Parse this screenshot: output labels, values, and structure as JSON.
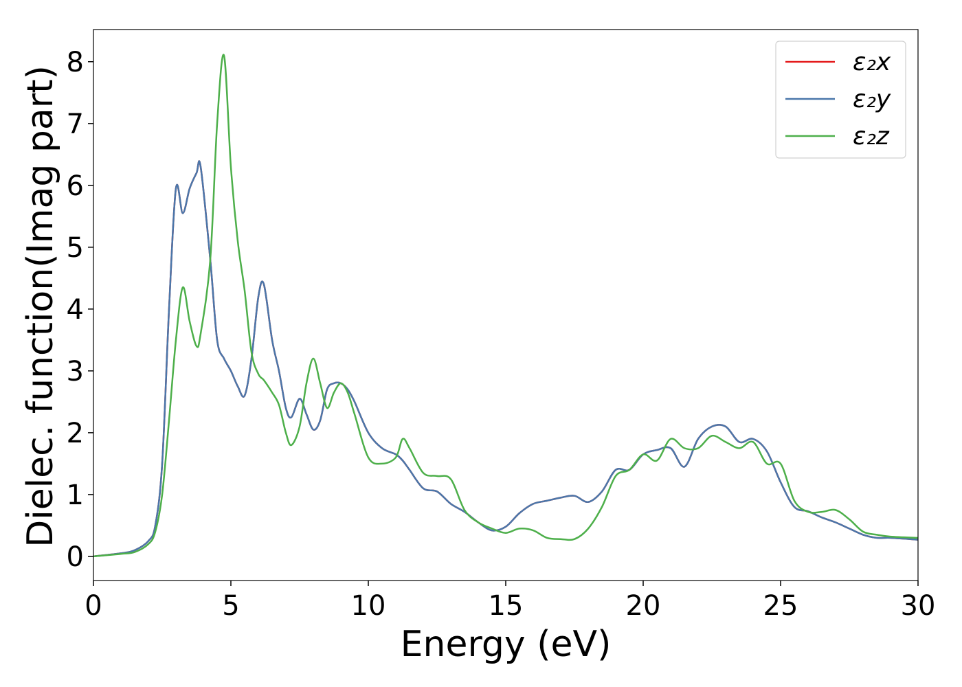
{
  "chart_data": {
    "type": "line",
    "xlabel": "Energy (eV)",
    "ylabel": "Dielec. function(Imag part)",
    "x": [
      0,
      1,
      1.5,
      2,
      2.25,
      2.5,
      2.75,
      3,
      3.25,
      3.5,
      3.75,
      3.9,
      4.25,
      4.5,
      4.75,
      5,
      5.25,
      5.5,
      5.75,
      6,
      6.2,
      6.5,
      6.75,
      7,
      7.2,
      7.5,
      7.75,
      8,
      8.25,
      8.5,
      8.75,
      9,
      9.25,
      9.5,
      10,
      10.5,
      11,
      11.25,
      11.5,
      12,
      12.5,
      13,
      13.5,
      14,
      14.5,
      15,
      15.5,
      16,
      16.5,
      17,
      17.5,
      18,
      18.5,
      19,
      19.5,
      20,
      20.5,
      21,
      21.5,
      22,
      22.5,
      23,
      23.5,
      24,
      24.5,
      25,
      25.5,
      26,
      26.5,
      27,
      27.5,
      28,
      28.5,
      29,
      30
    ],
    "series": [
      {
        "name": "ε₂x",
        "color": "#e41a1c",
        "values": [
          0,
          0.05,
          0.1,
          0.25,
          0.5,
          1.5,
          4.0,
          5.95,
          5.55,
          5.95,
          6.2,
          6.3,
          4.8,
          3.5,
          3.2,
          3.0,
          2.75,
          2.6,
          3.2,
          4.2,
          4.4,
          3.5,
          3.0,
          2.4,
          2.25,
          2.55,
          2.3,
          2.05,
          2.2,
          2.7,
          2.8,
          2.8,
          2.7,
          2.5,
          2.0,
          1.75,
          1.65,
          1.55,
          1.4,
          1.1,
          1.05,
          0.85,
          0.72,
          0.55,
          0.42,
          0.48,
          0.7,
          0.85,
          0.9,
          0.95,
          0.98,
          0.88,
          1.05,
          1.4,
          1.4,
          1.65,
          1.72,
          1.75,
          1.45,
          1.9,
          2.1,
          2.1,
          1.85,
          1.9,
          1.7,
          1.2,
          0.8,
          0.73,
          0.63,
          0.55,
          0.45,
          0.35,
          0.3,
          0.3,
          0.27
        ]
      },
      {
        "name": "ε₂y",
        "color": "#4a77aa",
        "values": [
          0,
          0.05,
          0.1,
          0.25,
          0.5,
          1.5,
          4.0,
          5.95,
          5.55,
          5.95,
          6.2,
          6.3,
          4.8,
          3.5,
          3.2,
          3.0,
          2.75,
          2.6,
          3.2,
          4.2,
          4.4,
          3.5,
          3.0,
          2.4,
          2.25,
          2.55,
          2.3,
          2.05,
          2.2,
          2.7,
          2.8,
          2.8,
          2.7,
          2.5,
          2.0,
          1.75,
          1.65,
          1.55,
          1.4,
          1.1,
          1.05,
          0.85,
          0.72,
          0.55,
          0.42,
          0.48,
          0.7,
          0.85,
          0.9,
          0.95,
          0.98,
          0.88,
          1.05,
          1.4,
          1.4,
          1.65,
          1.72,
          1.75,
          1.45,
          1.9,
          2.1,
          2.1,
          1.85,
          1.9,
          1.7,
          1.2,
          0.8,
          0.73,
          0.63,
          0.55,
          0.45,
          0.35,
          0.3,
          0.3,
          0.27
        ]
      },
      {
        "name": "ε₂z",
        "color": "#4daf4a",
        "values": [
          0,
          0.04,
          0.07,
          0.2,
          0.4,
          1.0,
          2.2,
          3.5,
          4.35,
          3.8,
          3.4,
          3.6,
          4.8,
          7.0,
          8.1,
          6.3,
          5.1,
          4.3,
          3.3,
          2.95,
          2.85,
          2.65,
          2.45,
          2.0,
          1.8,
          2.1,
          2.8,
          3.2,
          2.8,
          2.4,
          2.65,
          2.8,
          2.65,
          2.3,
          1.6,
          1.5,
          1.6,
          1.9,
          1.75,
          1.35,
          1.3,
          1.25,
          0.75,
          0.55,
          0.45,
          0.38,
          0.45,
          0.42,
          0.3,
          0.28,
          0.28,
          0.45,
          0.8,
          1.3,
          1.4,
          1.65,
          1.55,
          1.9,
          1.75,
          1.75,
          1.95,
          1.85,
          1.75,
          1.85,
          1.5,
          1.5,
          0.9,
          0.72,
          0.72,
          0.75,
          0.6,
          0.4,
          0.35,
          0.32,
          0.3
        ]
      }
    ],
    "xlim": [
      0,
      30
    ],
    "xticks": [
      0,
      5,
      10,
      15,
      20,
      25,
      30
    ],
    "ylim": [
      -0.39,
      8.52
    ],
    "yticks": [
      0,
      1,
      2,
      3,
      4,
      5,
      6,
      7,
      8
    ],
    "grid": false,
    "legend": "upper right"
  }
}
